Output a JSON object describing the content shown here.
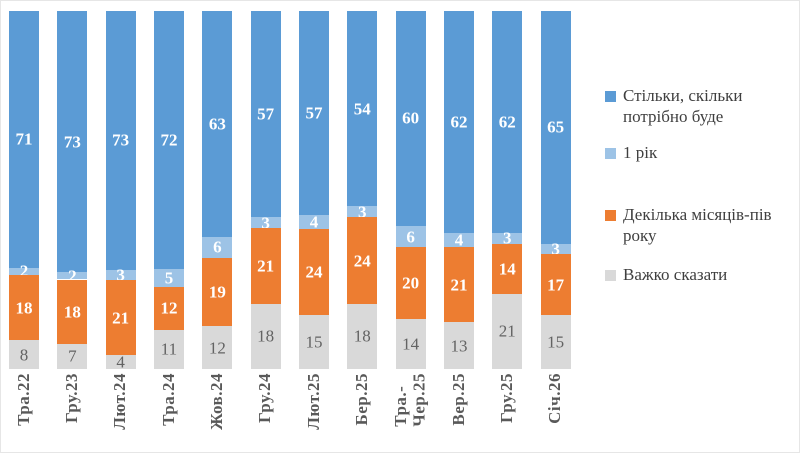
{
  "chart_data": {
    "type": "bar",
    "variant": "stacked-percent-column",
    "title": "",
    "xlabel": "",
    "ylabel": "",
    "ylim": [
      0,
      100
    ],
    "grid": false,
    "axes_visible": false,
    "legend_position": "right",
    "background_color": "#FFFFFF",
    "categories": [
      "Тра.22",
      "Гру.23",
      "Лют.24",
      "Тра.24",
      "Жов.24",
      "Гру.24",
      "Лют.25",
      "Бер.25",
      "Тра.-\nЧер.25",
      "Вер.25",
      "Гру.25",
      "Січ.26"
    ],
    "series": [
      {
        "name": "Стільки, скільки потрібно буде",
        "color": "#5B9BD5",
        "label_color": "#FFFFFF",
        "label_bold": true,
        "values": [
          71,
          73,
          73,
          72,
          63,
          57,
          57,
          54,
          60,
          62,
          62,
          65
        ]
      },
      {
        "name": "1 рік",
        "color": "#9DC3E6",
        "label_color": "#FFFFFF",
        "label_bold": true,
        "values": [
          2,
          2,
          3,
          5,
          6,
          3,
          4,
          3,
          6,
          4,
          3,
          3
        ]
      },
      {
        "name": "Декілька місяців-пів року",
        "color": "#ED7D31",
        "label_color": "#FFFFFF",
        "label_bold": true,
        "values": [
          18,
          18,
          21,
          12,
          19,
          21,
          24,
          24,
          20,
          21,
          14,
          17
        ]
      },
      {
        "name": "Важко сказати",
        "color": "#D9D9D9",
        "label_color": "#636363",
        "label_bold": false,
        "values": [
          8,
          7,
          4,
          11,
          12,
          18,
          15,
          18,
          14,
          13,
          21,
          15
        ]
      }
    ],
    "axis_label_color": "#595959",
    "legend_text_color": "#3F3F3F"
  }
}
